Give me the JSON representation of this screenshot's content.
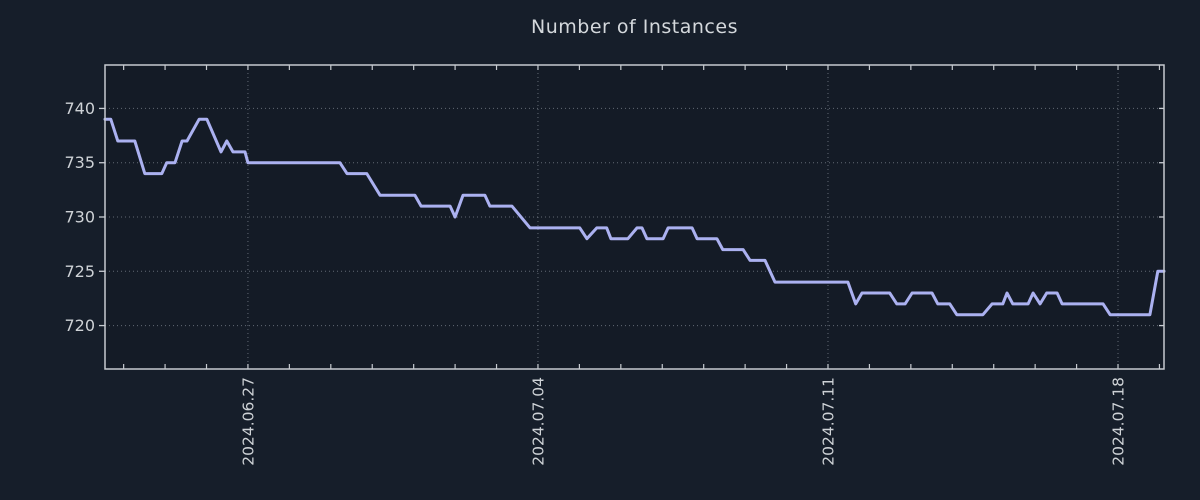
{
  "page": {
    "background": "#161e2a"
  },
  "chart_data": {
    "type": "line",
    "title": "Number of Instances",
    "xlabel": "",
    "ylabel": "",
    "legend": null,
    "grid": "dotted",
    "colors": {
      "line": "#abb1f0",
      "plot_background": "#141b26",
      "spine": "#c6cad0",
      "grid": "#a2aab4",
      "tick_label": "#ced2d6",
      "title": "#d4d8dc"
    },
    "x_axis": {
      "domain_days": [
        -3.45,
        22.11
      ],
      "major_ticks": [
        {
          "day": 0,
          "label": "2024.06.27"
        },
        {
          "day": 7,
          "label": "2024.07.04"
        },
        {
          "day": 14,
          "label": "2024.07.11"
        },
        {
          "day": 21,
          "label": "2024.07.18"
        }
      ],
      "minor_tick_step_days": 1,
      "minor_tick_range_days": [
        -3,
        22
      ]
    },
    "y_axis": {
      "domain": [
        716,
        744
      ],
      "ticks": [
        720,
        725,
        730,
        735,
        740
      ]
    },
    "series_points_day_value": [
      [
        -3.45,
        739
      ],
      [
        -3.31,
        739
      ],
      [
        -3.14,
        737
      ],
      [
        -2.73,
        737
      ],
      [
        -2.49,
        734
      ],
      [
        -2.08,
        734
      ],
      [
        -1.96,
        735
      ],
      [
        -1.76,
        735
      ],
      [
        -1.59,
        737
      ],
      [
        -1.47,
        737
      ],
      [
        -1.18,
        739
      ],
      [
        -0.99,
        739
      ],
      [
        -0.65,
        736
      ],
      [
        -0.51,
        737
      ],
      [
        -0.36,
        736
      ],
      [
        -0.07,
        736
      ],
      [
        0,
        735
      ],
      [
        2.22,
        735
      ],
      [
        2.39,
        734
      ],
      [
        2.87,
        734
      ],
      [
        3.19,
        732
      ],
      [
        4.03,
        732
      ],
      [
        4.18,
        731
      ],
      [
        4.88,
        731
      ],
      [
        5.0,
        730
      ],
      [
        5.19,
        732
      ],
      [
        5.72,
        732
      ],
      [
        5.84,
        731
      ],
      [
        6.37,
        731
      ],
      [
        6.81,
        729
      ],
      [
        8.01,
        729
      ],
      [
        8.18,
        728
      ],
      [
        8.42,
        729
      ],
      [
        8.66,
        729
      ],
      [
        8.76,
        728
      ],
      [
        9.17,
        728
      ],
      [
        9.39,
        729
      ],
      [
        9.51,
        729
      ],
      [
        9.63,
        728
      ],
      [
        10.02,
        728
      ],
      [
        10.14,
        729
      ],
      [
        10.72,
        729
      ],
      [
        10.84,
        728
      ],
      [
        11.32,
        728
      ],
      [
        11.46,
        727
      ],
      [
        11.95,
        727
      ],
      [
        12.12,
        726
      ],
      [
        12.48,
        726
      ],
      [
        12.72,
        724
      ],
      [
        14.48,
        724
      ],
      [
        14.67,
        722
      ],
      [
        14.82,
        723
      ],
      [
        15.49,
        723
      ],
      [
        15.66,
        722
      ],
      [
        15.86,
        722
      ],
      [
        16.03,
        723
      ],
      [
        16.51,
        723
      ],
      [
        16.65,
        722
      ],
      [
        16.94,
        722
      ],
      [
        17.11,
        721
      ],
      [
        17.74,
        721
      ],
      [
        17.96,
        722
      ],
      [
        18.22,
        722
      ],
      [
        18.32,
        723
      ],
      [
        18.46,
        722
      ],
      [
        18.83,
        722
      ],
      [
        18.95,
        723
      ],
      [
        19.12,
        722
      ],
      [
        19.28,
        723
      ],
      [
        19.53,
        723
      ],
      [
        19.65,
        722
      ],
      [
        20.64,
        722
      ],
      [
        20.81,
        721
      ],
      [
        21.77,
        721
      ],
      [
        21.96,
        725
      ],
      [
        22.11,
        725
      ]
    ]
  }
}
